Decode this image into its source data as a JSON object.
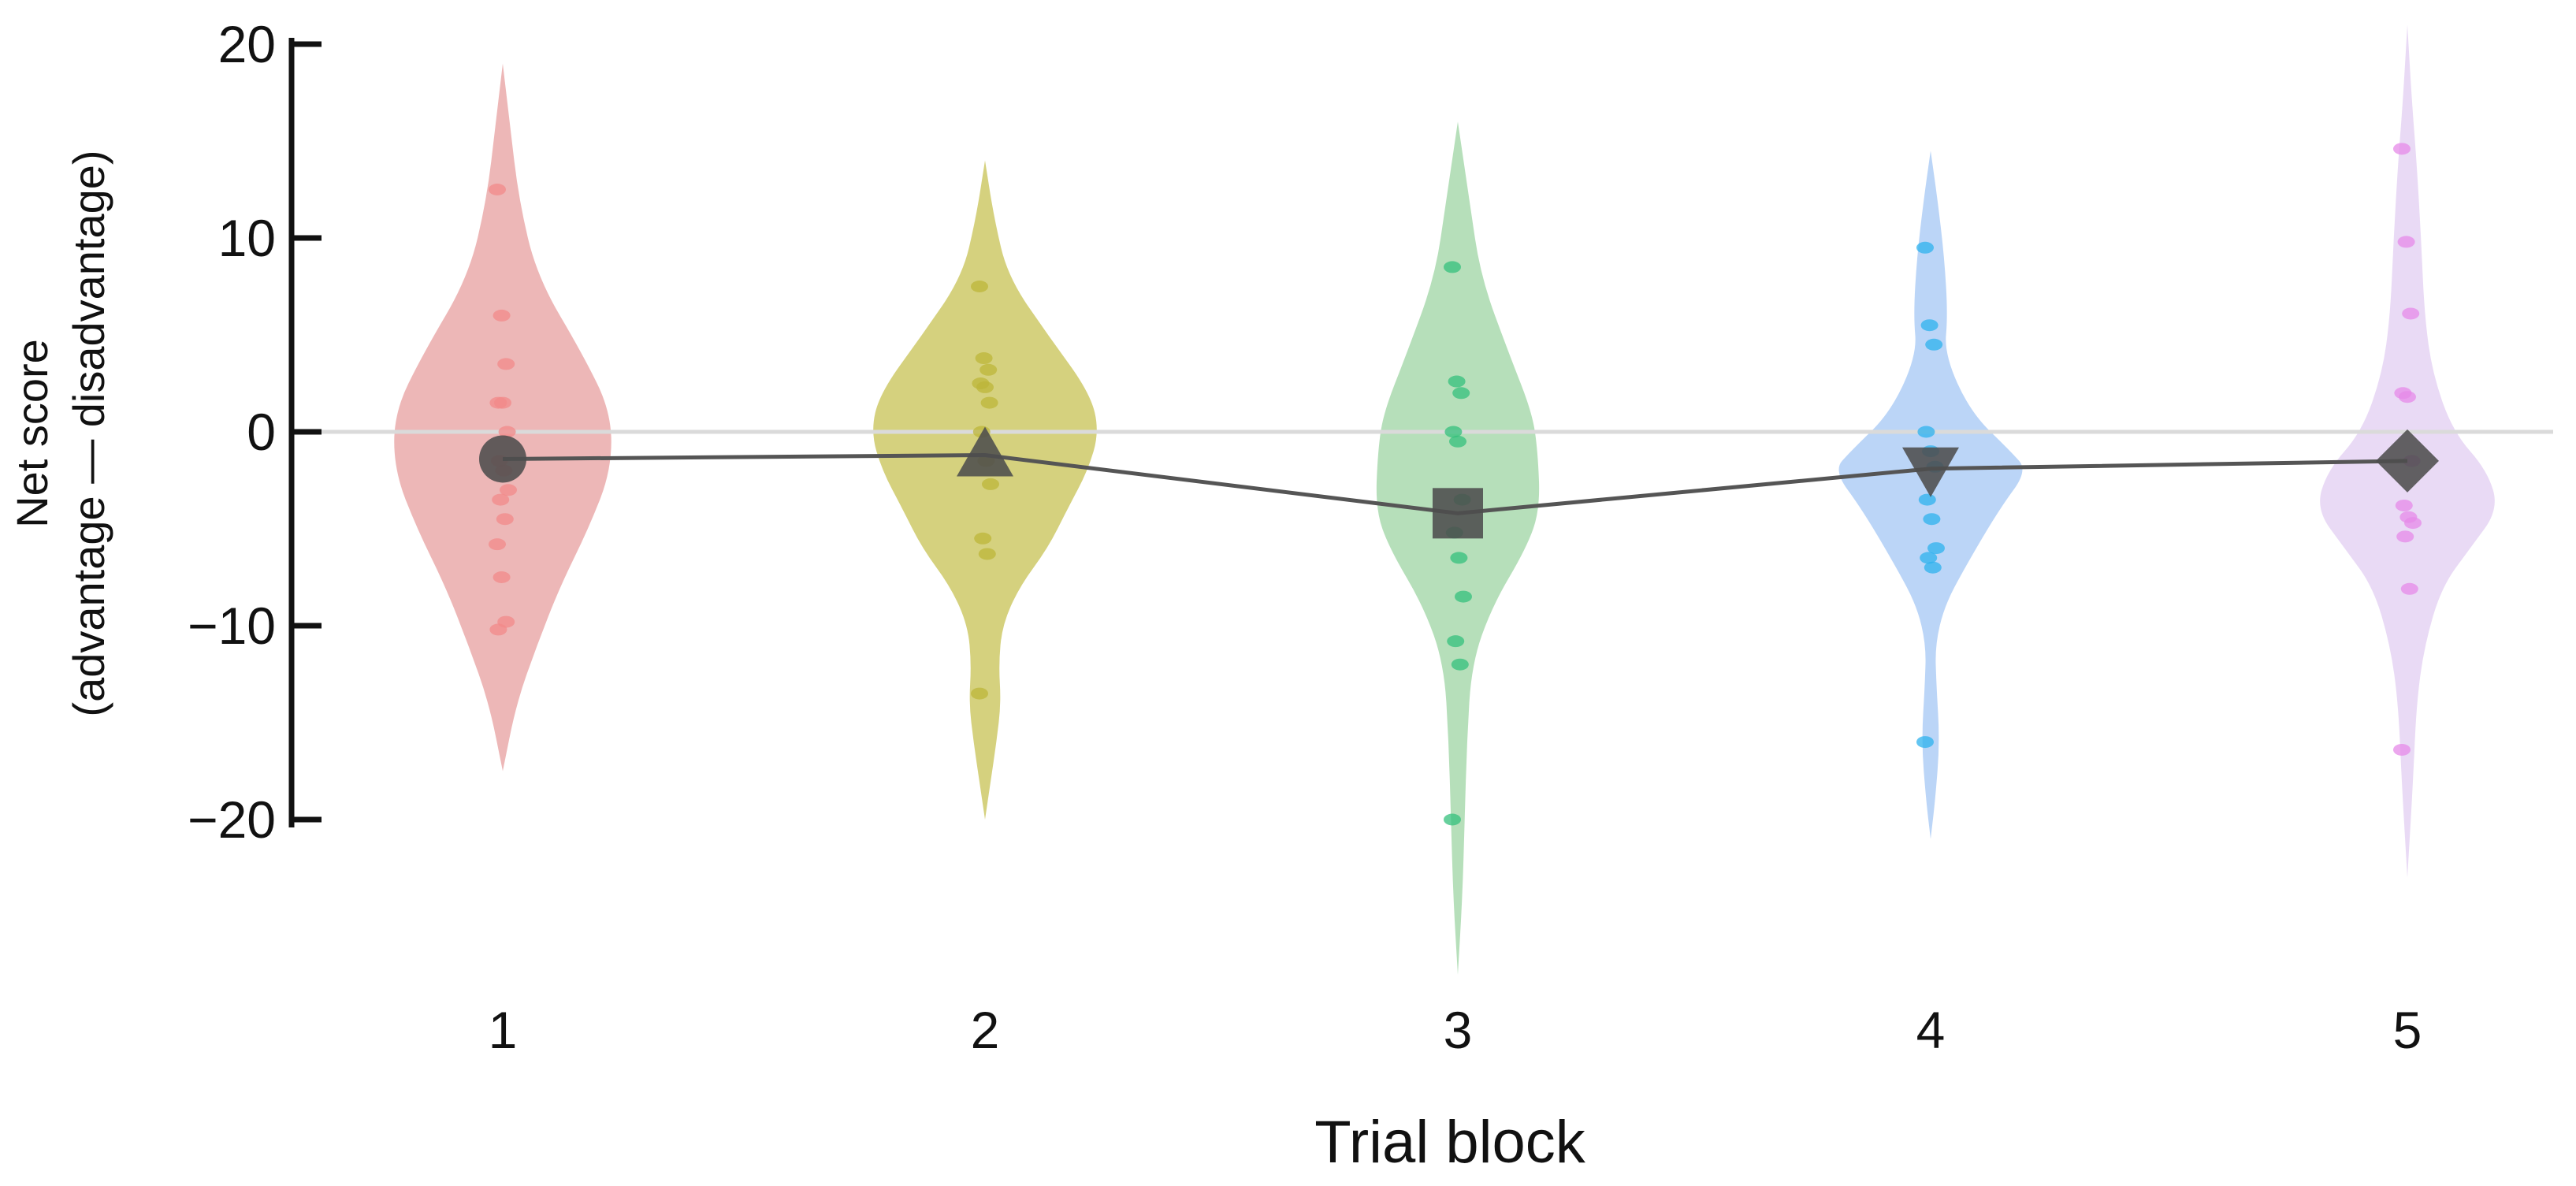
{
  "chart_data": {
    "type": "violin",
    "title": "",
    "xlabel": "Trial block",
    "ylabel_lines": [
      "Net score",
      "(advantage — disadvantage)"
    ],
    "ylim": [
      -20,
      20
    ],
    "yticks": [
      20,
      10,
      0,
      -10,
      -20
    ],
    "ytick_labels": [
      "20",
      "10",
      "0",
      "−10",
      "−20"
    ],
    "reference_line": 0,
    "grid": false,
    "categories": [
      "1",
      "2",
      "3",
      "4",
      "5"
    ],
    "means": [
      -1.4,
      -1.2,
      -4.2,
      -1.9,
      -1.5
    ],
    "mean_markers": [
      "circle",
      "triangle-up",
      "square",
      "triangle-down",
      "diamond"
    ],
    "colors": [
      "#e8a3a3",
      "#c9c45a",
      "#a2d6a6",
      "#a8c9f5",
      "#e3d0f2"
    ],
    "point_colors": [
      "#f28a8a",
      "#bcb53a",
      "#34c07c",
      "#2eb2ee",
      "#e58ae8"
    ],
    "violins": [
      {
        "top": 19,
        "bottom": -17.5,
        "profile": [
          [
            19,
            0
          ],
          [
            16,
            0.06
          ],
          [
            12,
            0.14
          ],
          [
            8,
            0.3
          ],
          [
            4,
            0.7
          ],
          [
            1,
            0.95
          ],
          [
            -2,
            0.95
          ],
          [
            -5,
            0.75
          ],
          [
            -8,
            0.5
          ],
          [
            -11,
            0.3
          ],
          [
            -14,
            0.12
          ],
          [
            -17.5,
            0
          ]
        ]
      },
      {
        "top": 14,
        "bottom": -20,
        "profile": [
          [
            14,
            0
          ],
          [
            11,
            0.08
          ],
          [
            8,
            0.2
          ],
          [
            5,
            0.55
          ],
          [
            2,
            0.92
          ],
          [
            0,
            1.0
          ],
          [
            -2,
            0.9
          ],
          [
            -4,
            0.72
          ],
          [
            -6,
            0.55
          ],
          [
            -8,
            0.3
          ],
          [
            -10,
            0.15
          ],
          [
            -12,
            0.12
          ],
          [
            -14,
            0.14
          ],
          [
            -16,
            0.1
          ],
          [
            -18,
            0.05
          ],
          [
            -20,
            0
          ]
        ]
      },
      {
        "top": 16,
        "bottom": -28,
        "profile": [
          [
            16,
            0
          ],
          [
            12,
            0.1
          ],
          [
            8,
            0.2
          ],
          [
            4,
            0.45
          ],
          [
            1,
            0.65
          ],
          [
            -1,
            0.7
          ],
          [
            -4,
            0.72
          ],
          [
            -6,
            0.6
          ],
          [
            -9,
            0.3
          ],
          [
            -12,
            0.12
          ],
          [
            -16,
            0.08
          ],
          [
            -20,
            0.06
          ],
          [
            -24,
            0.04
          ],
          [
            -28,
            0
          ]
        ]
      },
      {
        "top": 14.5,
        "bottom": -21,
        "profile": [
          [
            14.5,
            0
          ],
          [
            12,
            0.06
          ],
          [
            9,
            0.12
          ],
          [
            6,
            0.15
          ],
          [
            4,
            0.12
          ],
          [
            1,
            0.35
          ],
          [
            -1,
            0.7
          ],
          [
            -2,
            0.85
          ],
          [
            -4,
            0.6
          ],
          [
            -7,
            0.3
          ],
          [
            -9,
            0.12
          ],
          [
            -11,
            0.04
          ],
          [
            -13,
            0.05
          ],
          [
            -16,
            0.08
          ],
          [
            -19,
            0.04
          ],
          [
            -21,
            0
          ]
        ]
      },
      {
        "top": 21,
        "bottom": -23,
        "profile": [
          [
            21,
            0
          ],
          [
            17,
            0.04
          ],
          [
            14,
            0.08
          ],
          [
            10,
            0.12
          ],
          [
            6,
            0.15
          ],
          [
            3,
            0.22
          ],
          [
            0,
            0.4
          ],
          [
            -2,
            0.7
          ],
          [
            -4,
            0.8
          ],
          [
            -6,
            0.55
          ],
          [
            -8,
            0.3
          ],
          [
            -11,
            0.15
          ],
          [
            -14,
            0.08
          ],
          [
            -18,
            0.05
          ],
          [
            -23,
            0
          ]
        ]
      }
    ],
    "points": [
      [
        12.5,
        6,
        3.5,
        1.5,
        1.5,
        0,
        -1.5,
        -2,
        -3,
        -3.5,
        -4.5,
        -5.8,
        -7.5,
        -9.8,
        -10.2
      ],
      [
        7.5,
        3.8,
        3.2,
        2.5,
        2.3,
        1.5,
        0,
        -1.5,
        -2.7,
        -5.5,
        -6.3,
        -13.5
      ],
      [
        8.5,
        2.6,
        2,
        0,
        -0.5,
        -3.5,
        -5.2,
        -6.5,
        -8.5,
        -10.8,
        -12,
        -20
      ],
      [
        9.5,
        5.5,
        4.5,
        0,
        -1,
        -1.8,
        -3.5,
        -4.5,
        -6,
        -6.5,
        -7,
        -16
      ],
      [
        14.6,
        9.8,
        6.1,
        2,
        1.8,
        -1.5,
        -3.8,
        -4.4,
        -4.7,
        -5.4,
        -8.1,
        -16.4
      ]
    ]
  }
}
